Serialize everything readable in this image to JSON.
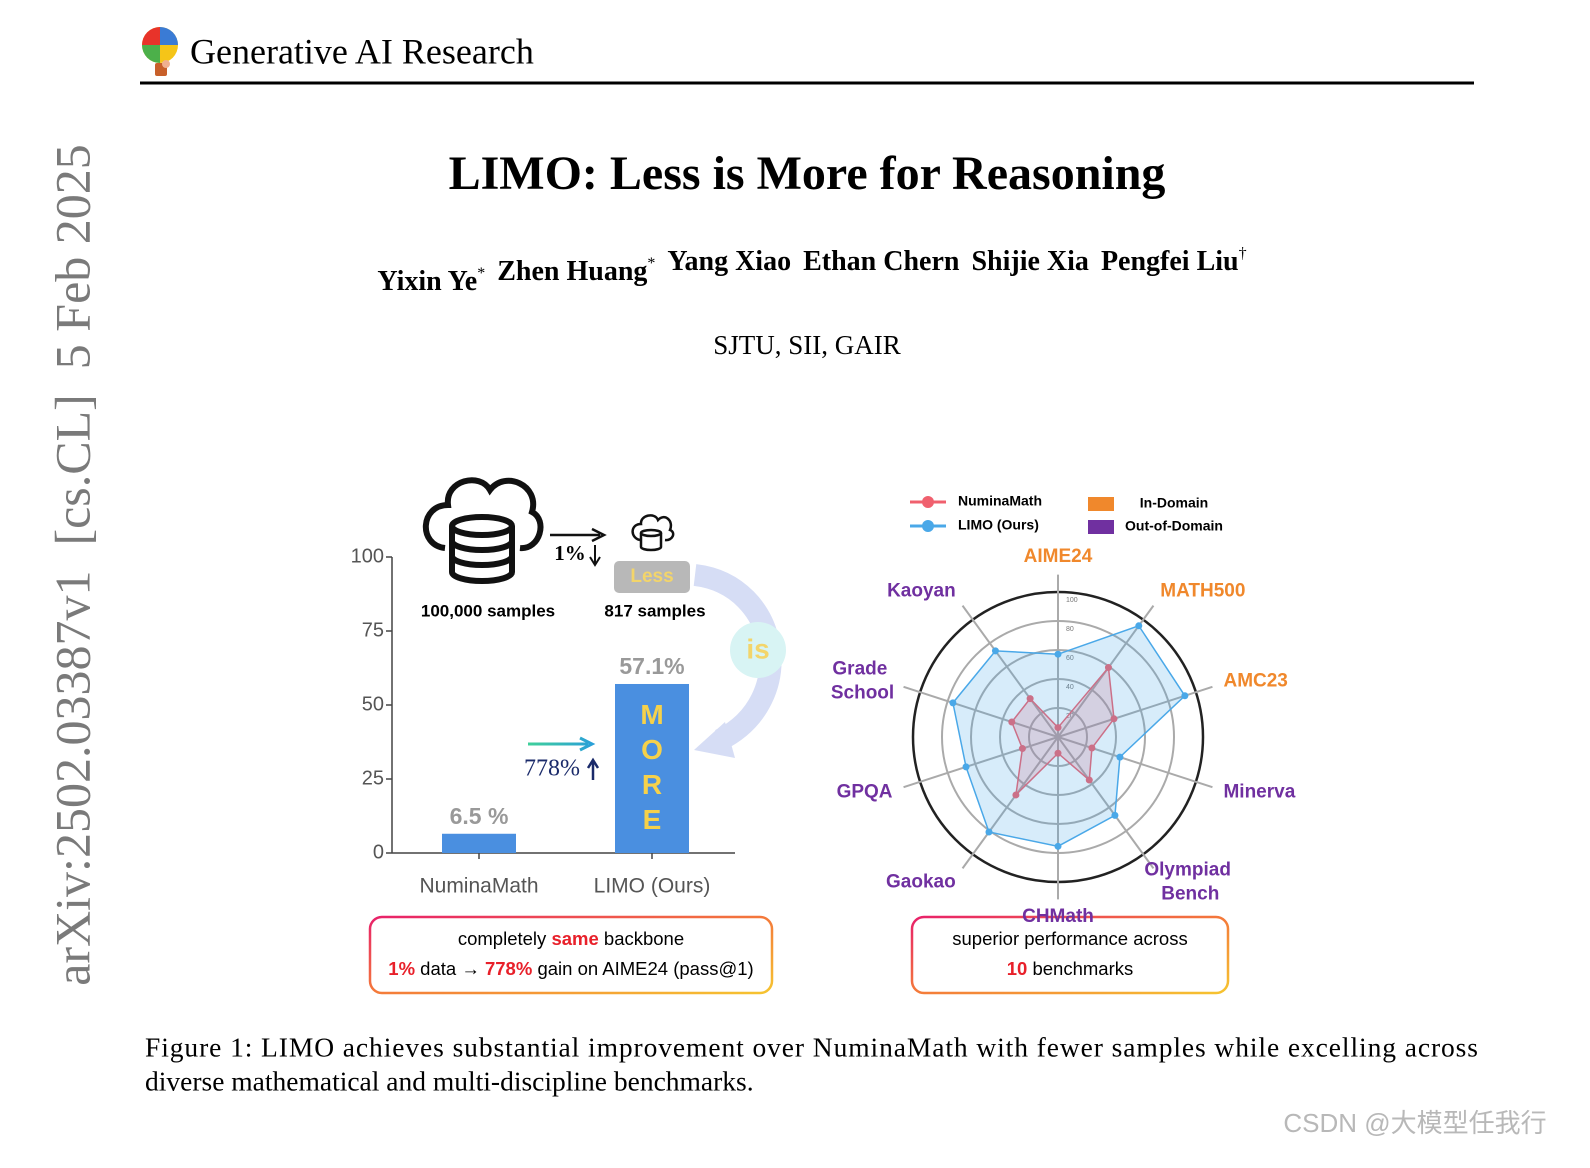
{
  "header": {
    "title": "Generative AI Research"
  },
  "sidebar": "arXiv:2502.03387v1  [cs.CL]  5 Feb 2025",
  "paper": {
    "title": "LIMO: Less is More for Reasoning",
    "authors": [
      {
        "name": "Yixin Ye",
        "mark": "*"
      },
      {
        "name": "Zhen Huang",
        "mark": "*"
      },
      {
        "name": "Yang Xiao"
      },
      {
        "name": "Ethan Chern"
      },
      {
        "name": "Shijie Xia"
      },
      {
        "name": "Pengfei Liu",
        "mark": "†"
      }
    ],
    "affiliation": "SJTU, SII, GAIR"
  },
  "figure": {
    "bar_chart": {
      "type": "bar",
      "categories": [
        "NuminaMath",
        "LIMO (Ours)"
      ],
      "values": [
        6.5,
        57.1
      ],
      "value_labels": [
        "6.5 %",
        "57.1%"
      ],
      "color": "#4a8fe0",
      "ylim": [
        0,
        100
      ],
      "yticks": [
        0,
        25,
        50,
        75,
        100
      ],
      "annotations": {
        "full_data": "100,000 samples",
        "limo_data": "817 samples",
        "reduction": "1%",
        "less": "Less",
        "is": "is",
        "more": "MORE",
        "gain": "778%"
      }
    },
    "radar_chart": {
      "type": "radar",
      "categories": [
        "AIME24",
        "MATH500",
        "AMC23",
        "Minerva",
        "Olympiad Bench",
        "CHMath",
        "Gaokao",
        "GPQA",
        "Grade School",
        "Kaoyan"
      ],
      "axis_colors": [
        "#f0882c",
        "#f0882c",
        "#f0882c",
        "#7030a0",
        "#7030a0",
        "#7030a0",
        "#7030a0",
        "#7030a0",
        "#7030a0",
        "#7030a0"
      ],
      "series": [
        {
          "name": "NuminaMath",
          "color": "#f0606e",
          "values": [
            6.5,
            59.2,
            40.6,
            24.6,
            36.7,
            11.2,
            49.4,
            25.8,
            33.5,
            32.7
          ]
        },
        {
          "name": "LIMO (Ours)",
          "color": "#4aa8e8",
          "values": [
            57.1,
            94.8,
            92.0,
            44.9,
            66.8,
            75.4,
            81.0,
            66.7,
            76.2,
            73.4
          ]
        }
      ],
      "rlim": [
        0,
        100
      ],
      "rticks": [
        20,
        40,
        60,
        80,
        100
      ],
      "domain_legend": [
        {
          "name": "In-Domain",
          "color": "#f0882c"
        },
        {
          "name": "Out-of-Domain",
          "color": "#7030a0"
        }
      ]
    },
    "callouts": [
      {
        "lines": [
          [
            {
              "text": "completely "
            },
            {
              "text": "same",
              "highlight": true
            },
            {
              "text": " backbone"
            }
          ],
          [
            {
              "text": "1%",
              "highlight": true
            },
            {
              "text": " data → "
            },
            {
              "text": "778%",
              "highlight": true
            },
            {
              "text": " gain on AIME24 (pass@1)"
            }
          ]
        ]
      },
      {
        "lines": [
          [
            {
              "text": "superior performance across"
            }
          ],
          [
            {
              "text": "10",
              "highlight": true
            },
            {
              "text": " benchmarks"
            }
          ]
        ]
      }
    ],
    "caption": [
      "Figure 1: LIMO achieves substantial improvement over NuminaMath with fewer samples while excelling across",
      "diverse mathematical and multi-discipline benchmarks."
    ]
  },
  "watermark": "CSDN @大模型任我行"
}
